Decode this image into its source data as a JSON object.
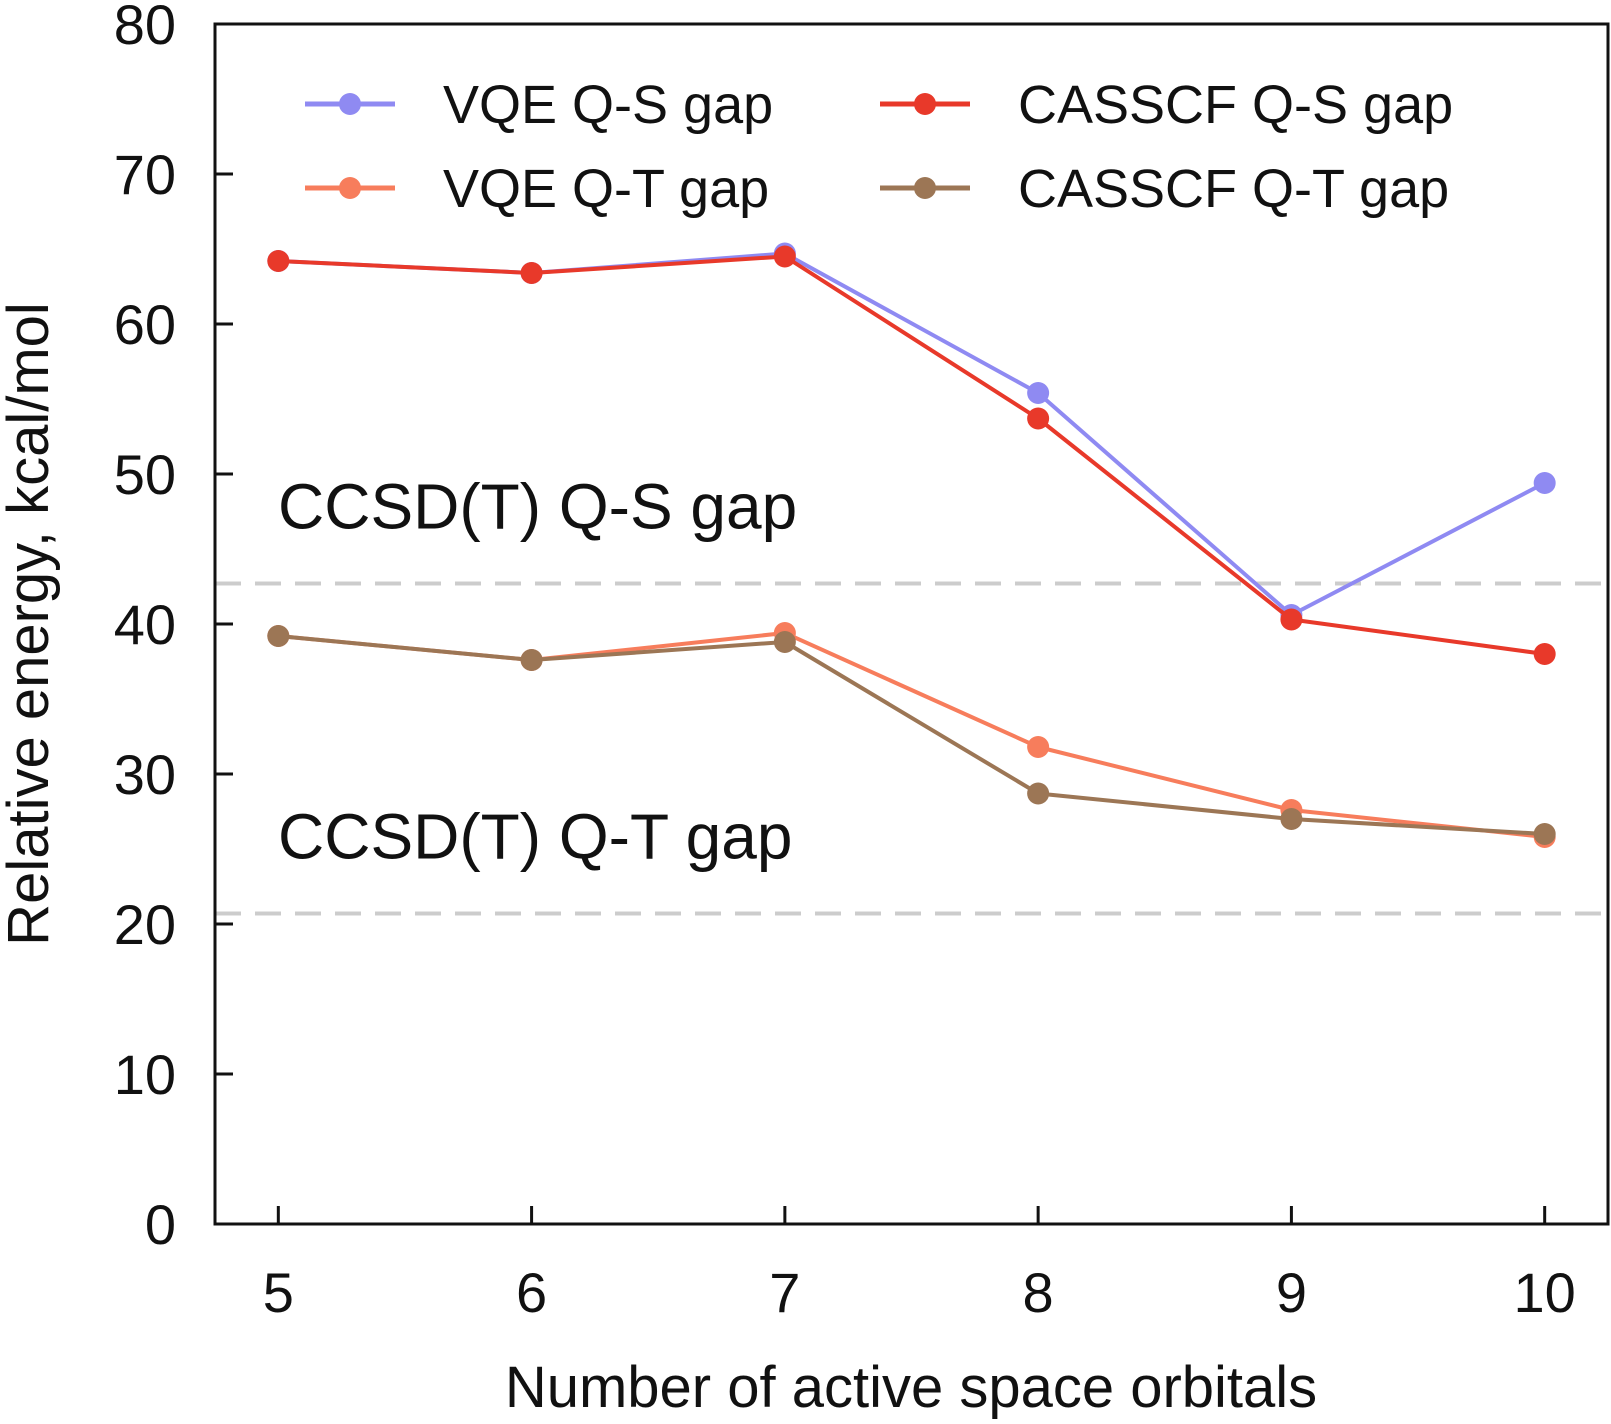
{
  "chart_data": {
    "type": "line",
    "title": "",
    "xlabel": "Number of active space orbitals",
    "ylabel": "Relative energy, kcal/mol",
    "x": [
      5,
      6,
      7,
      8,
      9,
      10
    ],
    "xlim": [
      4.75,
      10.25
    ],
    "ylim": [
      0,
      80
    ],
    "xticks": [
      "5",
      "6",
      "7",
      "8",
      "9",
      "10"
    ],
    "yticks": [
      "0",
      "10",
      "20",
      "30",
      "40",
      "50",
      "60",
      "70",
      "80"
    ],
    "grid": false,
    "legend": {
      "placement": "top",
      "columns": 2
    },
    "series": [
      {
        "name": "VQE Q-S gap",
        "color": "#8f8af2",
        "values": [
          64.2,
          63.4,
          64.7,
          55.4,
          40.6,
          49.4
        ]
      },
      {
        "name": "CASSCF Q-S gap",
        "color": "#e8392a",
        "values": [
          64.2,
          63.4,
          64.5,
          53.7,
          40.3,
          38.0
        ]
      },
      {
        "name": "VQE Q-T gap",
        "color": "#f77d5c",
        "values": [
          39.2,
          37.6,
          39.4,
          31.8,
          27.6,
          25.8
        ]
      },
      {
        "name": "CASSCF Q-T gap",
        "color": "#9c7655",
        "values": [
          39.2,
          37.6,
          38.8,
          28.7,
          27.0,
          26.0
        ]
      }
    ],
    "reference_lines": [
      {
        "label": "CCSD(T) Q-S gap",
        "value": 42.7,
        "color": "#cccccc",
        "style": "dashed"
      },
      {
        "label": "CCSD(T) Q-T gap",
        "value": 20.7,
        "color": "#cccccc",
        "style": "dashed"
      }
    ]
  }
}
